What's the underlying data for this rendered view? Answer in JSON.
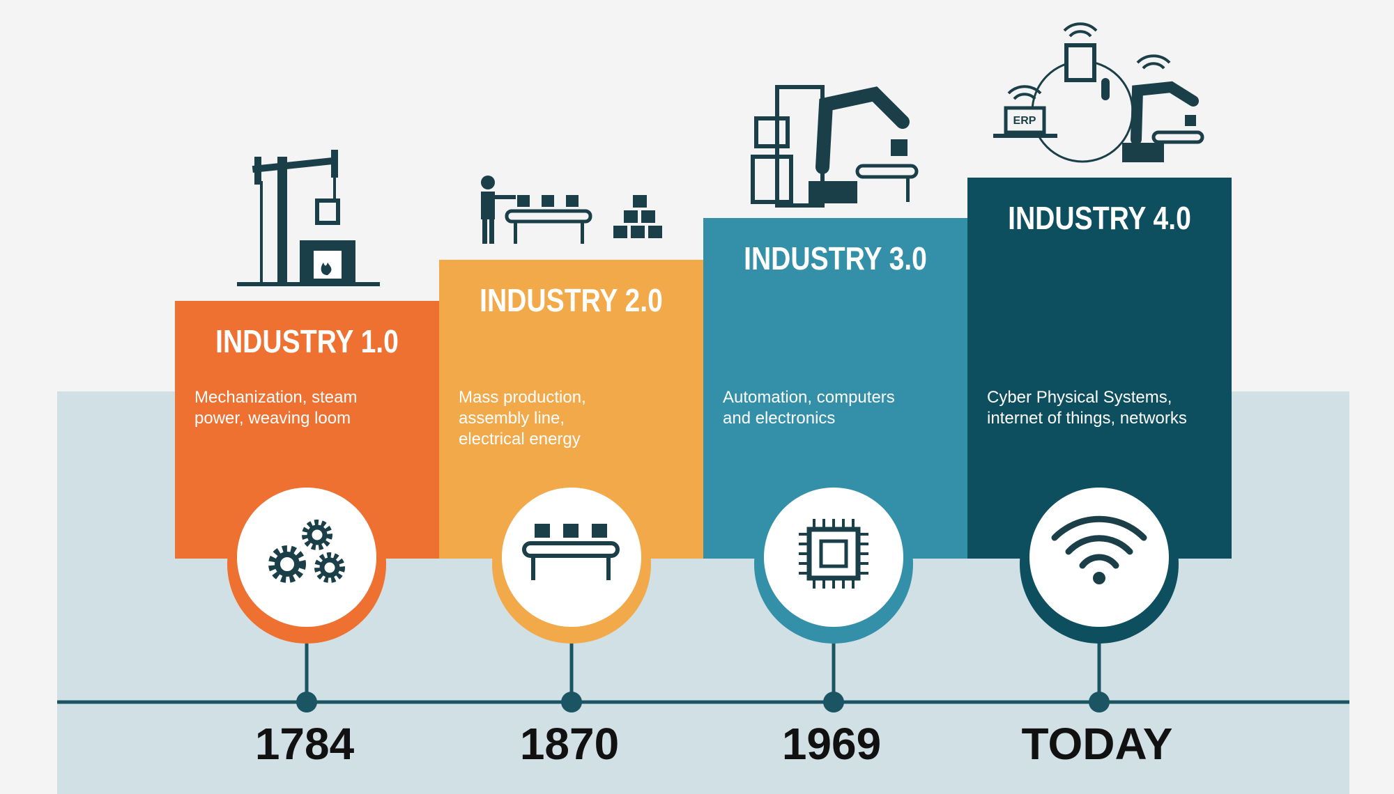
{
  "stages": [
    {
      "title": "INDUSTRY 1.0",
      "description": [
        "Mechanization, steam",
        "power, weaving loom"
      ],
      "year": "1784",
      "color": "#ef7131"
    },
    {
      "title": "INDUSTRY 2.0",
      "description": [
        "Mass production,",
        "assembly line,",
        "electrical energy"
      ],
      "year": "1870",
      "color": "#f2a94a"
    },
    {
      "title": "INDUSTRY 3.0",
      "description": [
        "Automation, computers",
        "and electronics"
      ],
      "year": "1969",
      "color": "#3490a9"
    },
    {
      "title": "INDUSTRY 4.0",
      "description": [
        "Cyber Physical Systems,",
        "internet of things, networks"
      ],
      "year": "TODAY",
      "color": "#0d4f5f"
    }
  ]
}
